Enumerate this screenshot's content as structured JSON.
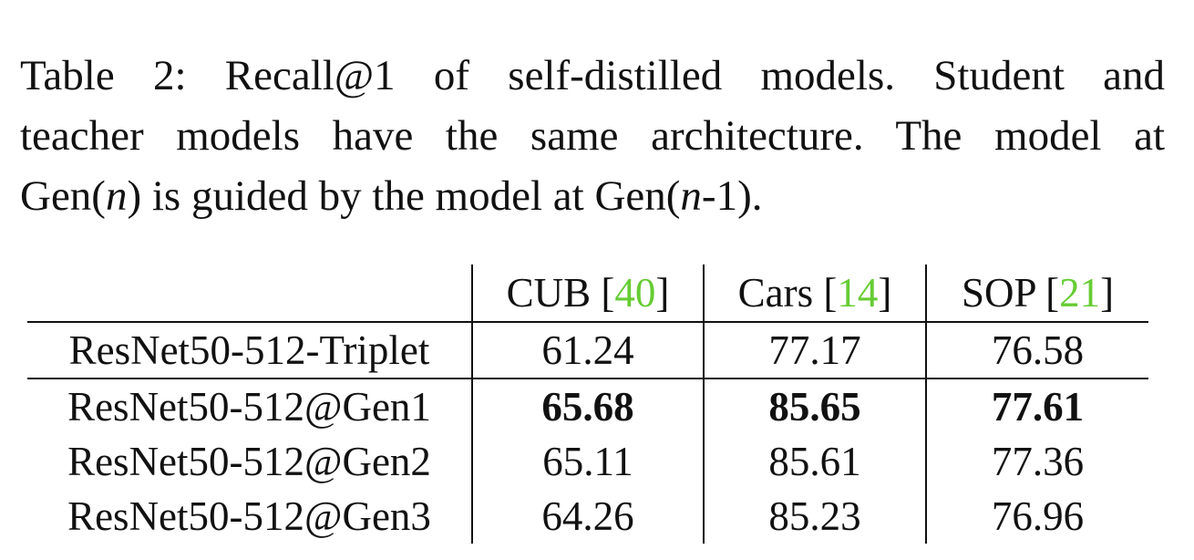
{
  "caption": {
    "line1": "Table 2:  Recall@1 of self-distilled models.  Student and",
    "line2": "teacher models have the same architecture.  The model at",
    "line3_pre": "Gen(",
    "line3_n1": "n",
    "line3_mid": ") is guided by the model at Gen(",
    "line3_n2": "n",
    "line3_post": "-1)."
  },
  "table": {
    "columns": [
      {
        "name": "CUB [",
        "ref": "40",
        "close": "]"
      },
      {
        "name": "Cars [",
        "ref": "14",
        "close": "]"
      },
      {
        "name": "SOP [",
        "ref": "21",
        "close": "]"
      }
    ],
    "rows": [
      {
        "model": "ResNet50-512-Triplet",
        "values": [
          "61.24",
          "77.17",
          "76.58"
        ]
      },
      {
        "model": "ResNet50-512@Gen1",
        "values": [
          "65.68",
          "85.65",
          "77.61"
        ]
      },
      {
        "model": "ResNet50-512@Gen2",
        "values": [
          "65.11",
          "85.61",
          "77.36"
        ]
      },
      {
        "model": "ResNet50-512@Gen3",
        "values": [
          "64.26",
          "85.23",
          "76.96"
        ]
      }
    ]
  },
  "colors": {
    "reference_link": "#66cc33",
    "text": "#111111"
  }
}
